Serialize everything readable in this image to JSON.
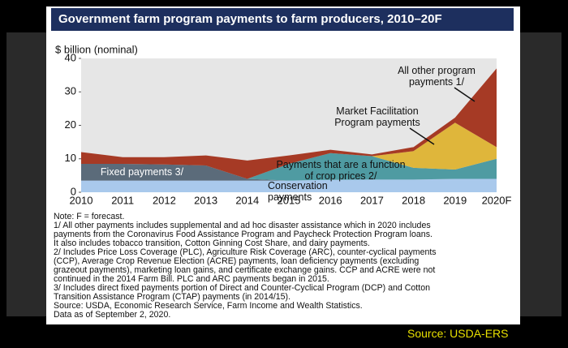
{
  "chart_data": {
    "type": "stacked-area",
    "title": "Government farm program payments to farm producers, 2010–20F",
    "y_label": "$ billion (nominal)",
    "categories": [
      "2010",
      "2011",
      "2012",
      "2013",
      "2014",
      "2015",
      "2016",
      "2017",
      "2018",
      "2019",
      "2020F"
    ],
    "ylim": [
      0,
      40
    ],
    "yticks": [
      0,
      10,
      20,
      30,
      40
    ],
    "grid": false,
    "series": [
      {
        "name": "Conservation payments",
        "color": "#a9c9ec",
        "values": [
          3.5,
          3.5,
          3.5,
          3.5,
          3.5,
          3.5,
          3.7,
          3.8,
          3.8,
          4,
          4
        ]
      },
      {
        "name": "Fixed payments 3/",
        "color": "#5b6b7a",
        "values": [
          5,
          5,
          4.8,
          4.5,
          0.5,
          0,
          0,
          0,
          0,
          0,
          0
        ]
      },
      {
        "name": "Payments that are a function of crop prices 2/",
        "color": "#4f9ba2",
        "values": [
          0,
          0,
          0,
          0,
          0,
          5,
          8,
          7,
          3.5,
          2.8,
          6
        ]
      },
      {
        "name": "Market Facilitation Program payments",
        "color": "#dfb63b",
        "values": [
          0,
          0,
          0,
          0,
          0,
          0,
          0,
          0,
          5,
          14,
          3.5
        ]
      },
      {
        "name": "All other program payments 1/",
        "color": "#a63a25",
        "values": [
          3.5,
          2,
          2.2,
          3,
          5.5,
          2.5,
          1,
          0.5,
          1.2,
          1.5,
          23.5
        ]
      }
    ],
    "notes": [
      "Note: F = forecast.",
      "1/ All other payments includes supplemental and ad hoc disaster assistance which in 2020 includes",
      "payments from the Coronavirus Food Assistance Program and Paycheck Protection Program loans.",
      "It also includes tobacco transition, Cotton Ginning Cost Share, and dairy payments.",
      "2/ Includes Price Loss Coverage (PLC), Agriculture Risk Coverage (ARC), counter-cyclical payments",
      "(CCP), Average Crop Revenue Election (ACRE) payments, loan deficiency payments (excluding",
      "grazeout payments), marketing loan gains, and certificate exchange gains. CCP and ACRE were not",
      "continued in the 2014 Farm Bill. PLC and ARC payments began in 2015.",
      "3/ Includes direct fixed payments portion of Direct and Counter-Cyclical Program (DCP) and Cotton",
      "Transition Assistance Program (CTAP) payments (in 2014/15).",
      "Source: USDA, Economic Research Service, Farm Income and Wealth Statistics.",
      "Data as of September 2, 2020."
    ],
    "source": "Source: USDA-ERS"
  }
}
